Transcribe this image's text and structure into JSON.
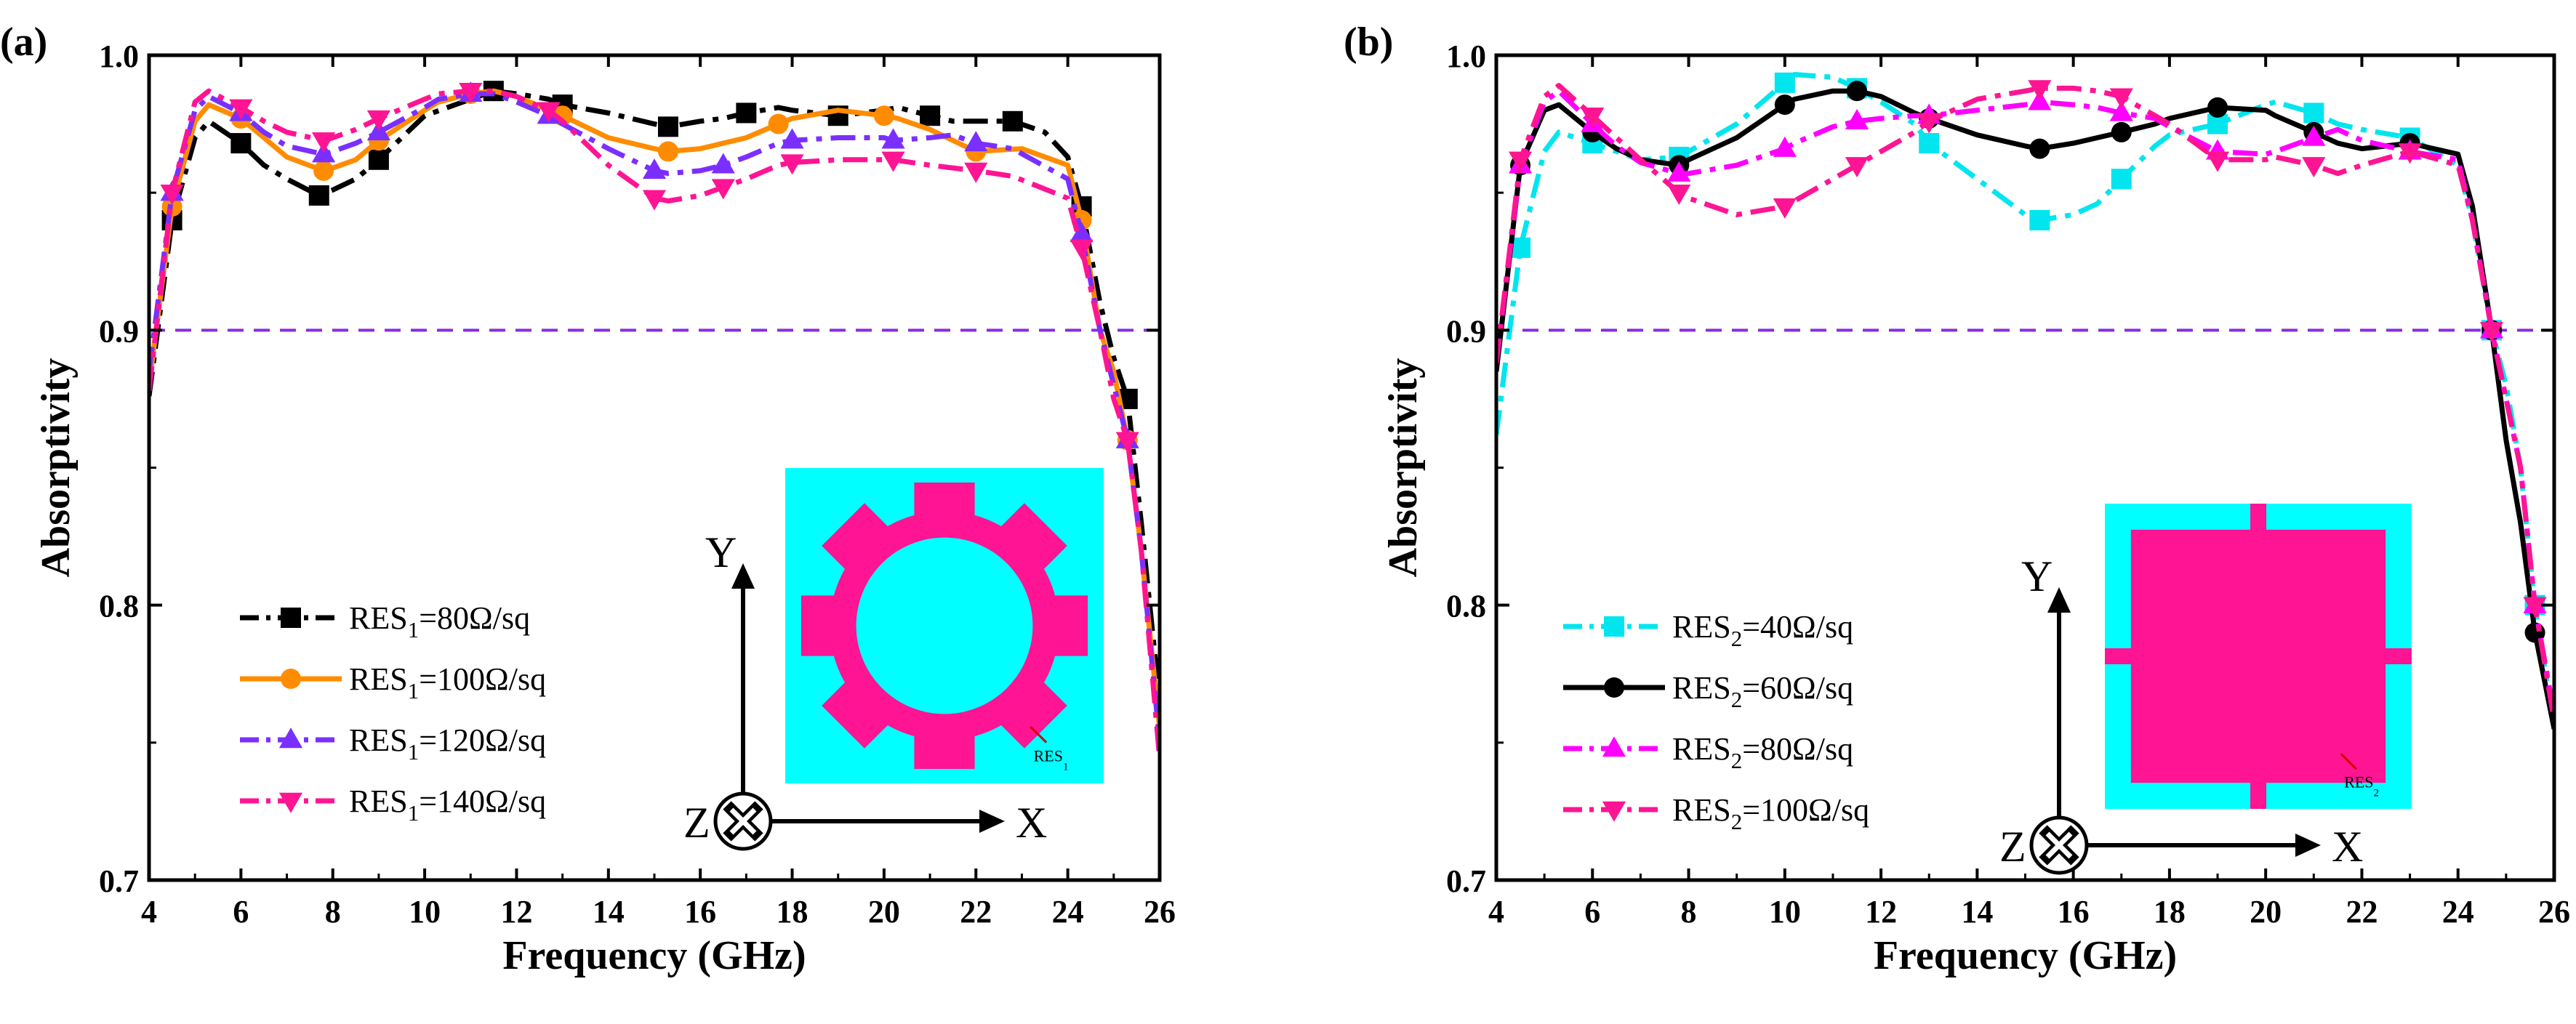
{
  "figure": {
    "threshold": 0.9,
    "colors": {
      "cyan_bg": "#00ffff",
      "pink": "#ff1493",
      "threshold_line": "#8a2be2",
      "axis": "#000000"
    }
  },
  "chart_data": [
    {
      "type": "line",
      "panel_label": "(a)",
      "xlabel": "Frequency (GHz)",
      "ylabel": "Absorptivity",
      "xlim": [
        4,
        26
      ],
      "ylim": [
        0.7,
        1.0
      ],
      "xticks": [
        "4",
        "6",
        "8",
        "10",
        "12",
        "14",
        "16",
        "18",
        "20",
        "22",
        "24",
        "26"
      ],
      "yticks": [
        "0.7",
        "0.8",
        "0.9",
        "1.0"
      ],
      "threshold_line": 0.9,
      "legend_position": "bottom-left",
      "inset": {
        "pattern": "gear",
        "label": "RES",
        "label_sub": "1"
      },
      "coordinate_axes": {
        "x": "X",
        "y": "Y",
        "z": "Z"
      },
      "series": [
        {
          "name_prefix": "RES",
          "sub": "1",
          "name_suffix": "=80Ω/sq",
          "color": "#000000",
          "marker": "square",
          "dash": "dashdot",
          "x": [
            4,
            4.5,
            5,
            5.3,
            6,
            6.5,
            7,
            7.7,
            8,
            8.5,
            9,
            10,
            11,
            11.5,
            12,
            12.7,
            13,
            14,
            15,
            15.3,
            16,
            16.5,
            17,
            17.7,
            18,
            19,
            20,
            20.3,
            21,
            21.5,
            22,
            22.8,
            23.5,
            24,
            24.3,
            24.7,
            25,
            25.3,
            25.6,
            26
          ],
          "y": [
            0.876,
            0.94,
            0.97,
            0.976,
            0.968,
            0.96,
            0.955,
            0.949,
            0.951,
            0.955,
            0.962,
            0.978,
            0.984,
            0.987,
            0.986,
            0.984,
            0.982,
            0.979,
            0.975,
            0.974,
            0.976,
            0.977,
            0.979,
            0.981,
            0.98,
            0.978,
            0.98,
            0.981,
            0.978,
            0.976,
            0.976,
            0.976,
            0.972,
            0.963,
            0.945,
            0.91,
            0.89,
            0.875,
            0.83,
            0.765
          ]
        },
        {
          "name_prefix": "RES",
          "sub": "1",
          "name_suffix": "=100Ω/sq",
          "color": "#ff8c00",
          "marker": "circle",
          "dash": "solid",
          "x": [
            4,
            4.5,
            5,
            5.3,
            6,
            6.5,
            7,
            7.8,
            8,
            8.5,
            9,
            10,
            10.3,
            11,
            11.5,
            12,
            13,
            14,
            15,
            15.3,
            16,
            17,
            17.7,
            18,
            19,
            20,
            20.3,
            21,
            22,
            23,
            24,
            24.3,
            24.7,
            25,
            25.3,
            25.6,
            26
          ],
          "y": [
            0.88,
            0.945,
            0.976,
            0.982,
            0.977,
            0.97,
            0.963,
            0.958,
            0.959,
            0.962,
            0.969,
            0.98,
            0.983,
            0.986,
            0.987,
            0.985,
            0.978,
            0.97,
            0.966,
            0.965,
            0.966,
            0.97,
            0.975,
            0.977,
            0.98,
            0.978,
            0.977,
            0.973,
            0.965,
            0.966,
            0.96,
            0.94,
            0.9,
            0.885,
            0.86,
            0.82,
            0.755
          ]
        },
        {
          "name_prefix": "RES",
          "sub": "1",
          "name_suffix": "=120Ω/sq",
          "color": "#7b2fff",
          "marker": "triangle-up",
          "dash": "dashdot",
          "x": [
            4,
            4.5,
            5,
            5.3,
            6,
            6.5,
            7,
            7.8,
            8,
            8.5,
            9,
            10,
            10.3,
            11,
            11.5,
            12,
            12.7,
            13,
            14,
            15,
            15.3,
            16,
            16.5,
            17,
            17.7,
            18,
            19,
            20,
            20.2,
            21,
            21.5,
            22,
            22.8,
            24,
            24.3,
            24.7,
            25,
            25.3,
            25.6,
            26
          ],
          "y": [
            0.885,
            0.95,
            0.98,
            0.985,
            0.979,
            0.972,
            0.967,
            0.964,
            0.965,
            0.968,
            0.972,
            0.981,
            0.984,
            0.986,
            0.986,
            0.983,
            0.978,
            0.975,
            0.966,
            0.958,
            0.957,
            0.958,
            0.96,
            0.963,
            0.968,
            0.969,
            0.97,
            0.97,
            0.969,
            0.97,
            0.971,
            0.968,
            0.966,
            0.955,
            0.935,
            0.9,
            0.88,
            0.86,
            0.82,
            0.75
          ]
        },
        {
          "name_prefix": "RES",
          "sub": "1",
          "name_suffix": "=140Ω/sq",
          "color": "#ff1493",
          "marker": "triangle-down",
          "dash": "dashdot",
          "x": [
            4,
            4.5,
            5,
            5.3,
            6,
            6.5,
            7,
            7.8,
            8,
            8.5,
            9,
            10,
            10.3,
            11,
            11.5,
            12,
            12.7,
            13,
            14,
            15,
            15.3,
            16,
            16.5,
            17,
            17.7,
            18,
            19,
            20,
            20.2,
            21,
            21.5,
            22,
            22.8,
            24,
            24.3,
            24.7,
            25,
            25.3,
            25.6,
            26
          ],
          "y": [
            0.878,
            0.95,
            0.983,
            0.987,
            0.981,
            0.976,
            0.972,
            0.969,
            0.97,
            0.973,
            0.977,
            0.984,
            0.986,
            0.987,
            0.987,
            0.985,
            0.98,
            0.976,
            0.96,
            0.948,
            0.947,
            0.949,
            0.952,
            0.955,
            0.96,
            0.961,
            0.962,
            0.962,
            0.962,
            0.96,
            0.959,
            0.958,
            0.956,
            0.948,
            0.93,
            0.9,
            0.875,
            0.86,
            0.82,
            0.744
          ]
        }
      ]
    },
    {
      "type": "line",
      "panel_label": "(b)",
      "xlabel": "Frequency (GHz)",
      "ylabel": "Absorptivity",
      "xlim": [
        4,
        26
      ],
      "ylim": [
        0.7,
        1.0
      ],
      "xticks": [
        "4",
        "6",
        "8",
        "10",
        "12",
        "14",
        "16",
        "18",
        "20",
        "22",
        "24",
        "26"
      ],
      "yticks": [
        "0.7",
        "0.8",
        "0.9",
        "1.0"
      ],
      "threshold_line": 0.9,
      "legend_position": "bottom-left",
      "inset": {
        "pattern": "square-cross",
        "label": "RES",
        "label_sub": "2"
      },
      "coordinate_axes": {
        "x": "X",
        "y": "Y",
        "z": "Z"
      },
      "series": [
        {
          "name_prefix": "RES",
          "sub": "2",
          "name_suffix": "=40Ω/sq",
          "color": "#00e5ee",
          "marker": "square",
          "dash": "dashdot",
          "x": [
            4,
            4.5,
            5,
            5.3,
            6,
            6.5,
            7,
            7.8,
            8,
            9,
            10,
            10.2,
            11,
            11.5,
            12,
            12.7,
            13,
            14,
            15,
            15.3,
            16,
            16.5,
            17,
            17.7,
            18,
            19,
            20,
            20.2,
            21,
            21.5,
            22,
            23,
            24,
            24.3,
            24.7,
            25,
            25.3,
            25.6,
            26
          ],
          "y": [
            0.862,
            0.93,
            0.965,
            0.972,
            0.968,
            0.965,
            0.962,
            0.963,
            0.965,
            0.975,
            0.99,
            0.993,
            0.992,
            0.988,
            0.983,
            0.975,
            0.968,
            0.955,
            0.942,
            0.94,
            0.942,
            0.946,
            0.955,
            0.967,
            0.971,
            0.975,
            0.982,
            0.983,
            0.979,
            0.975,
            0.973,
            0.97,
            0.96,
            0.94,
            0.9,
            0.88,
            0.85,
            0.8,
            0.755
          ]
        },
        {
          "name_prefix": "RES",
          "sub": "2",
          "name_suffix": "=60Ω/sq",
          "color": "#000000",
          "marker": "circle",
          "dash": "solid",
          "x": [
            4,
            4.5,
            5,
            5.3,
            6,
            6.5,
            7,
            7.8,
            8,
            9,
            10,
            10.2,
            11,
            11.5,
            12,
            12.7,
            13,
            14,
            15,
            15.3,
            16,
            16.5,
            17,
            17.7,
            18,
            19,
            20,
            20.2,
            21,
            21.5,
            22,
            23,
            24,
            24.3,
            24.7,
            25,
            25.3,
            25.6,
            26
          ],
          "y": [
            0.885,
            0.96,
            0.98,
            0.982,
            0.972,
            0.966,
            0.962,
            0.96,
            0.962,
            0.97,
            0.982,
            0.984,
            0.987,
            0.987,
            0.985,
            0.979,
            0.977,
            0.971,
            0.967,
            0.966,
            0.968,
            0.97,
            0.972,
            0.975,
            0.977,
            0.981,
            0.98,
            0.978,
            0.972,
            0.968,
            0.966,
            0.968,
            0.964,
            0.945,
            0.9,
            0.86,
            0.83,
            0.79,
            0.755
          ]
        },
        {
          "name_prefix": "RES",
          "sub": "2",
          "name_suffix": "=80Ω/sq",
          "color": "#ff00ff",
          "marker": "triangle-up",
          "dash": "dashdot",
          "x": [
            4,
            4.5,
            5,
            5.3,
            6,
            6.5,
            7,
            7.8,
            8,
            9,
            10,
            10.2,
            11,
            11.5,
            12,
            12.7,
            13,
            14,
            15,
            15.3,
            16,
            16.5,
            17,
            17.7,
            18,
            19,
            20,
            20.2,
            21,
            21.5,
            22,
            23,
            24,
            24.3,
            24.7,
            25,
            25.3,
            25.6,
            26
          ],
          "y": [
            0.888,
            0.96,
            0.983,
            0.987,
            0.975,
            0.967,
            0.961,
            0.957,
            0.957,
            0.96,
            0.966,
            0.968,
            0.974,
            0.976,
            0.977,
            0.978,
            0.978,
            0.98,
            0.982,
            0.983,
            0.982,
            0.981,
            0.979,
            0.977,
            0.974,
            0.965,
            0.964,
            0.965,
            0.97,
            0.973,
            0.969,
            0.965,
            0.962,
            0.94,
            0.9,
            0.875,
            0.85,
            0.8,
            0.76
          ]
        },
        {
          "name_prefix": "RES",
          "sub": "2",
          "name_suffix": "=100Ω/sq",
          "color": "#ff1493",
          "marker": "triangle-down",
          "dash": "dashdot",
          "x": [
            4,
            4.5,
            5,
            5.3,
            6,
            6.5,
            7,
            7.8,
            8,
            9,
            10,
            10.2,
            11,
            11.5,
            12,
            12.7,
            13,
            14,
            15,
            15.3,
            16,
            16.5,
            17,
            17.7,
            18,
            19,
            20,
            20.2,
            21,
            21.5,
            22,
            23,
            24,
            24.3,
            24.7,
            25,
            25.3,
            25.6,
            26
          ],
          "y": [
            0.888,
            0.962,
            0.985,
            0.989,
            0.978,
            0.97,
            0.962,
            0.95,
            0.948,
            0.942,
            0.945,
            0.947,
            0.955,
            0.96,
            0.965,
            0.972,
            0.976,
            0.984,
            0.987,
            0.988,
            0.988,
            0.987,
            0.985,
            0.978,
            0.975,
            0.962,
            0.962,
            0.963,
            0.96,
            0.957,
            0.96,
            0.965,
            0.96,
            0.94,
            0.9,
            0.875,
            0.85,
            0.8,
            0.758
          ]
        }
      ]
    }
  ]
}
